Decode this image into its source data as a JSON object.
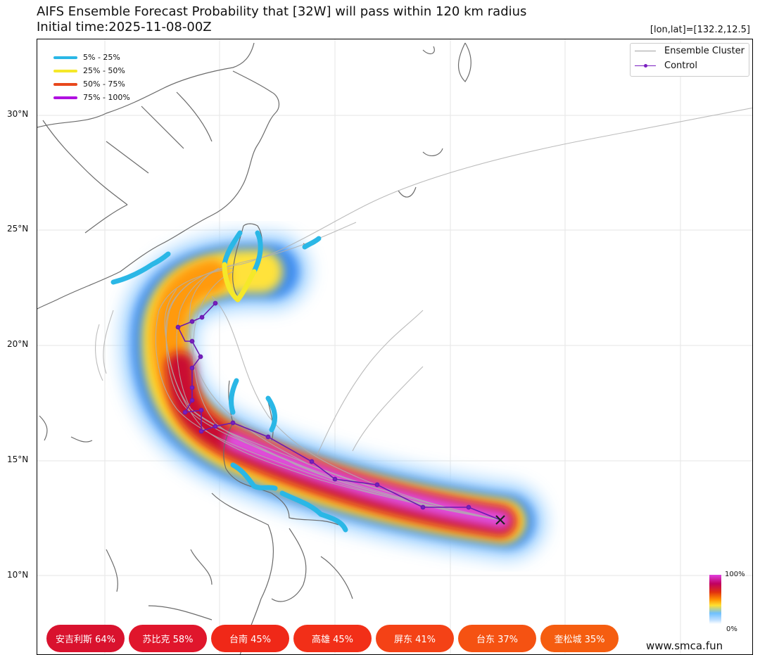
{
  "title": {
    "line1": "AIFS Ensemble Forecast Probability that [32W] will pass within 120 km radius",
    "line2": "Initial time:2025-11-08-00Z",
    "coord": "[lon,lat]=[132.2,12.5]"
  },
  "axis": {
    "lat_labels": [
      "30°N",
      "25°N",
      "20°N",
      "15°N",
      "10°N"
    ]
  },
  "prob_legend": [
    {
      "label": "5% - 25%",
      "color": "#2ab7e6"
    },
    {
      "label": "25% - 50%",
      "color": "#f5e829"
    },
    {
      "label": "50% - 75%",
      "color": "#e8481c"
    },
    {
      "label": "75% - 100%",
      "color": "#b010e0"
    }
  ],
  "track_legend": {
    "ensemble": "Ensemble Cluster",
    "control": "Control"
  },
  "colorbar": {
    "max": "100%",
    "min": "0%"
  },
  "cities": [
    {
      "label": "安吉利斯 64%",
      "color": "#d9122e"
    },
    {
      "label": "苏比克 58%",
      "color": "#e0162c"
    },
    {
      "label": "台南 45%",
      "color": "#f02818"
    },
    {
      "label": "高雄 45%",
      "color": "#f22f18"
    },
    {
      "label": "屏东 41%",
      "color": "#f44216"
    },
    {
      "label": "台东 37%",
      "color": "#f55212"
    },
    {
      "label": "奎松城 35%",
      "color": "#f55d10"
    }
  ],
  "website": "www.smca.fun",
  "colors": {
    "land_outline": "#6b6b6b",
    "ensemble_track": "#b0b0b0",
    "control_track": "#6a1bb0"
  }
}
